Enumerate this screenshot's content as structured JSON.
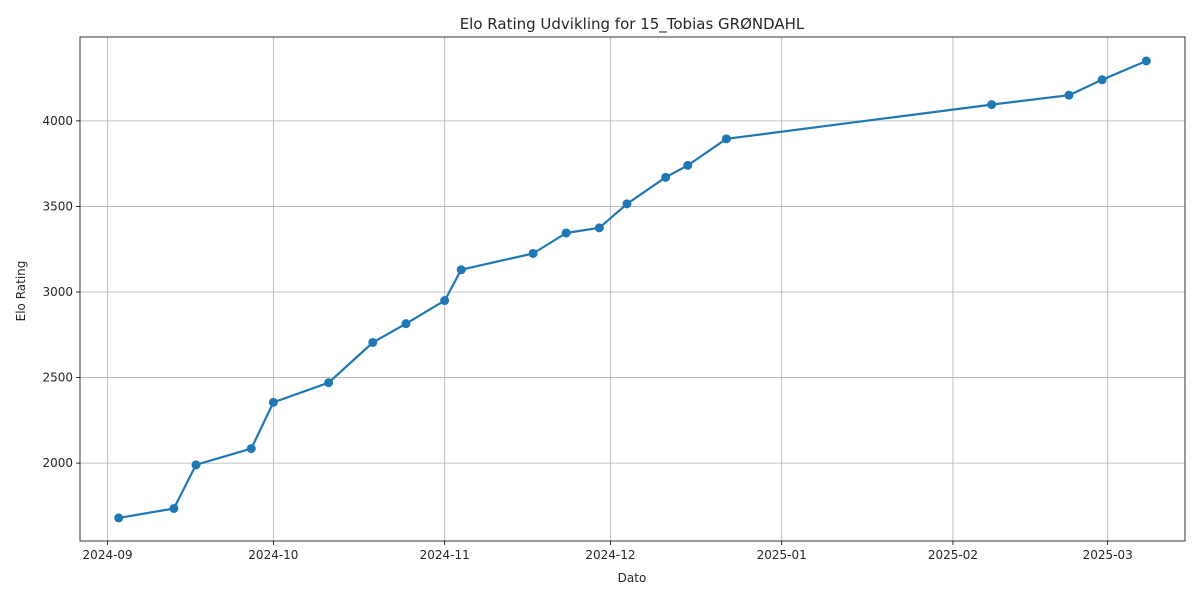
{
  "chart_data": {
    "type": "line",
    "title": "Elo Rating Udvikling for 15_Tobias GRØNDAHL",
    "xlabel": "Dato",
    "ylabel": "Elo Rating",
    "grid": true,
    "series_color": "#1f77b4",
    "x_ticks": [
      "2024-09-01",
      "2024-10-01",
      "2024-11-01",
      "2024-12-01",
      "2025-01-01",
      "2025-02-01",
      "2025-03-01"
    ],
    "x_tick_labels": [
      "2024-09",
      "2024-10",
      "2024-11",
      "2024-12",
      "2025-01",
      "2025-02",
      "2025-03"
    ],
    "xlim": [
      "2024-08-27",
      "2025-03-15"
    ],
    "y_ticks": [
      2000,
      2500,
      3000,
      3500,
      4000
    ],
    "y_tick_labels": [
      "2000",
      "2500",
      "3000",
      "3500",
      "4000"
    ],
    "ylim": [
      1545,
      4490
    ],
    "series": [
      {
        "x": [
          "2024-09-03",
          "2024-09-13",
          "2024-09-17",
          "2024-09-27",
          "2024-10-01",
          "2024-10-11",
          "2024-10-19",
          "2024-10-25",
          "2024-11-01",
          "2024-11-04",
          "2024-11-17",
          "2024-11-23",
          "2024-11-29",
          "2024-12-04",
          "2024-12-11",
          "2024-12-15",
          "2024-12-22",
          "2025-02-08",
          "2025-02-22",
          "2025-02-28",
          "2025-03-08"
        ],
        "y": [
          1680,
          1735,
          1990,
          2085,
          2355,
          2470,
          2705,
          2815,
          2950,
          3130,
          3225,
          3345,
          3375,
          3515,
          3670,
          3740,
          3895,
          4095,
          4150,
          4240,
          4350
        ]
      }
    ]
  }
}
